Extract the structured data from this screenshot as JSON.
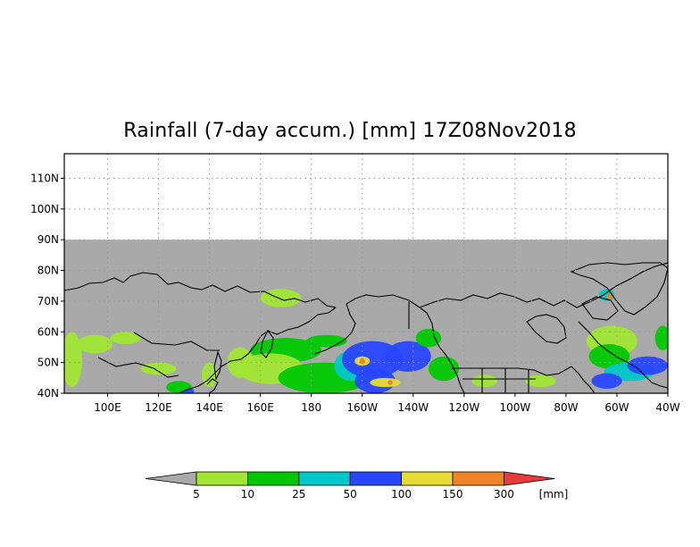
{
  "title": "Rainfall (7-day accum.) [mm] 17Z08Nov2018",
  "colors": {
    "frame": "#000000",
    "no_data": "#a9a9a9",
    "grid": "#9a9a9a",
    "coast": "#000000"
  },
  "map": {
    "lon_range": [
      "83E",
      "40W"
    ],
    "lat_range": [
      40,
      118
    ],
    "data_lat_limit": 90,
    "lat_ticks": [
      {
        "lat": 40,
        "label": "40N"
      },
      {
        "lat": 50,
        "label": "50N"
      },
      {
        "lat": 60,
        "label": "60N"
      },
      {
        "lat": 70,
        "label": "70N"
      },
      {
        "lat": 80,
        "label": "80N"
      },
      {
        "lat": 90,
        "label": "90N"
      },
      {
        "lat": 100,
        "label": "100N"
      },
      {
        "lat": 110,
        "label": "110N"
      }
    ],
    "lon_ticks": [
      {
        "lon": 100,
        "label": "100E"
      },
      {
        "lon": 120,
        "label": "120E"
      },
      {
        "lon": 140,
        "label": "140E"
      },
      {
        "lon": 160,
        "label": "160E"
      },
      {
        "lon": 180,
        "label": "180"
      },
      {
        "lon": 200,
        "label": "160W"
      },
      {
        "lon": 220,
        "label": "140W"
      },
      {
        "lon": 240,
        "label": "120W"
      },
      {
        "lon": 260,
        "label": "100W"
      },
      {
        "lon": 280,
        "label": "80W"
      },
      {
        "lon": 300,
        "label": "60W"
      },
      {
        "lon": 320,
        "label": "40W"
      }
    ]
  },
  "colorbar": {
    "unit": "[mm]",
    "under_color": "#a9a9a9",
    "over_color": "#e83a3a",
    "bins": [
      {
        "color": "#a0e632"
      },
      {
        "color": "#00c800"
      },
      {
        "color": "#00c8c8"
      },
      {
        "color": "#2846ff"
      },
      {
        "color": "#e6dc32"
      },
      {
        "color": "#f08228"
      }
    ],
    "labels": [
      "5",
      "10",
      "25",
      "50",
      "100",
      "150",
      "300"
    ]
  },
  "rain_regions": [
    {
      "level": 0,
      "lon": 86,
      "lat": 51,
      "rx": 4,
      "ry": 9
    },
    {
      "level": 0,
      "lon": 95,
      "lat": 56,
      "rx": 7,
      "ry": 3
    },
    {
      "level": 0,
      "lon": 107,
      "lat": 58,
      "rx": 6,
      "ry": 2
    },
    {
      "level": 0,
      "lon": 120,
      "lat": 48,
      "rx": 7,
      "ry": 2
    },
    {
      "level": 1,
      "lon": 128,
      "lat": 42,
      "rx": 5,
      "ry": 2
    },
    {
      "level": 3,
      "lon": 132,
      "lat": 40.6,
      "rx": 2,
      "ry": 1
    },
    {
      "level": 0,
      "lon": 140,
      "lat": 46,
      "rx": 3,
      "ry": 4
    },
    {
      "level": 0,
      "lon": 152,
      "lat": 50,
      "rx": 5,
      "ry": 5
    },
    {
      "level": 0,
      "lon": 168,
      "lat": 71,
      "rx": 8,
      "ry": 3
    },
    {
      "level": 1,
      "lon": 170,
      "lat": 54,
      "rx": 14,
      "ry": 4
    },
    {
      "level": 0,
      "lon": 164,
      "lat": 48,
      "rx": 13,
      "ry": 5
    },
    {
      "level": 1,
      "lon": 186,
      "lat": 57,
      "rx": 8,
      "ry": 2
    },
    {
      "level": 1,
      "lon": 185,
      "lat": 45,
      "rx": 18,
      "ry": 5
    },
    {
      "level": 2,
      "lon": 196,
      "lat": 49,
      "rx": 7,
      "ry": 5
    },
    {
      "level": 3,
      "lon": 204,
      "lat": 51,
      "rx": 12,
      "ry": 6
    },
    {
      "level": 3,
      "lon": 205,
      "lat": 44,
      "rx": 8,
      "ry": 4
    },
    {
      "level": 3,
      "lon": 218,
      "lat": 52,
      "rx": 9,
      "ry": 5
    },
    {
      "level": 4,
      "lon": 200,
      "lat": 50.5,
      "rx": 3,
      "ry": 1.5
    },
    {
      "level": 5,
      "lon": 200,
      "lat": 50.5,
      "rx": 1,
      "ry": 1
    },
    {
      "level": 4,
      "lon": 209,
      "lat": 43.5,
      "rx": 6,
      "ry": 1.5
    },
    {
      "level": 5,
      "lon": 211,
      "lat": 43.5,
      "rx": 1,
      "ry": 0.8
    },
    {
      "level": 1,
      "lon": 226,
      "lat": 58,
      "rx": 5,
      "ry": 3
    },
    {
      "level": 1,
      "lon": 232,
      "lat": 48,
      "rx": 6,
      "ry": 4
    },
    {
      "level": 0,
      "lon": 248,
      "lat": 44,
      "rx": 5,
      "ry": 2
    },
    {
      "level": 0,
      "lon": 270,
      "lat": 44,
      "rx": 6,
      "ry": 2
    },
    {
      "level": 2,
      "lon": 296,
      "lat": 72,
      "rx": 3,
      "ry": 2
    },
    {
      "level": 5,
      "lon": 297,
      "lat": 71.5,
      "rx": 1.2,
      "ry": 1
    },
    {
      "level": 0,
      "lon": 298,
      "lat": 57,
      "rx": 10,
      "ry": 5
    },
    {
      "level": 1,
      "lon": 297,
      "lat": 52,
      "rx": 8,
      "ry": 4
    },
    {
      "level": 2,
      "lon": 305,
      "lat": 47,
      "rx": 10,
      "ry": 3
    },
    {
      "level": 3,
      "lon": 312,
      "lat": 49,
      "rx": 8,
      "ry": 3
    },
    {
      "level": 3,
      "lon": 296,
      "lat": 44,
      "rx": 6,
      "ry": 2.5
    },
    {
      "level": 1,
      "lon": 318,
      "lat": 58,
      "rx": 3,
      "ry": 4
    }
  ]
}
